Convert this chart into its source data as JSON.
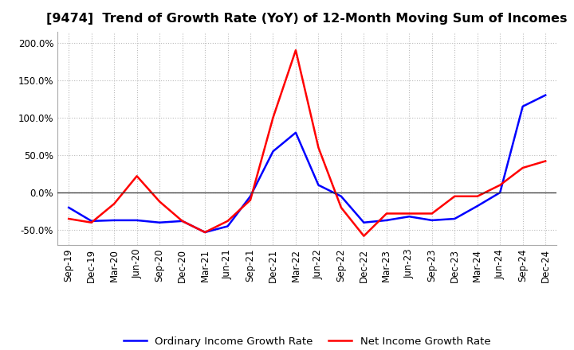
{
  "title": "[9474]  Trend of Growth Rate (YoY) of 12-Month Moving Sum of Incomes",
  "x_labels": [
    "Sep-19",
    "Dec-19",
    "Mar-20",
    "Jun-20",
    "Sep-20",
    "Dec-20",
    "Mar-21",
    "Jun-21",
    "Sep-21",
    "Dec-21",
    "Mar-22",
    "Jun-22",
    "Sep-22",
    "Dec-22",
    "Mar-23",
    "Jun-23",
    "Sep-23",
    "Dec-23",
    "Mar-24",
    "Jun-24",
    "Sep-24",
    "Dec-24"
  ],
  "ordinary_income": [
    -20,
    -38,
    -37,
    -37,
    -40,
    -38,
    -53,
    -45,
    -5,
    55,
    80,
    10,
    -5,
    -40,
    -37,
    -32,
    -37,
    -35,
    -18,
    0,
    115,
    130
  ],
  "net_income": [
    -35,
    -40,
    -15,
    22,
    -12,
    -38,
    -53,
    -38,
    -10,
    100,
    190,
    60,
    -20,
    -58,
    -28,
    -28,
    -28,
    -5,
    -5,
    10,
    33,
    42
  ],
  "ordinary_color": "#0000ff",
  "net_color": "#ff0000",
  "ylim": [
    -70,
    215
  ],
  "yticks": [
    -50,
    0,
    50,
    100,
    150,
    200
  ],
  "ytick_labels": [
    "-50.0%",
    "0.0%",
    "50.0%",
    "100.0%",
    "150.0%",
    "200.0%"
  ],
  "background_color": "#ffffff",
  "grid_color": "#bbbbbb",
  "legend_ordinary": "Ordinary Income Growth Rate",
  "legend_net": "Net Income Growth Rate",
  "title_fontsize": 11.5,
  "axis_fontsize": 8.5,
  "legend_fontsize": 9.5
}
